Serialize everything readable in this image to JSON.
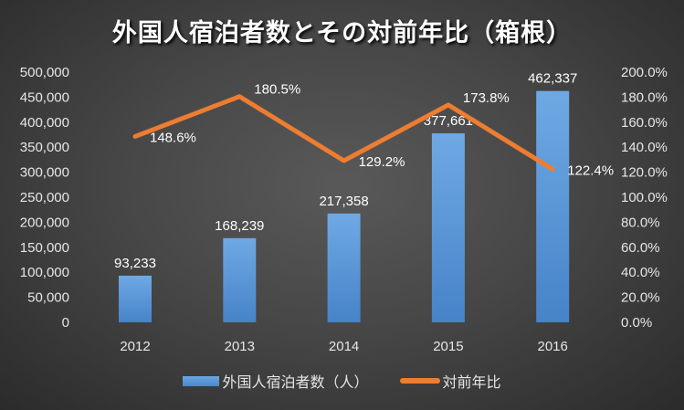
{
  "chart_data": {
    "type": "bar+line",
    "title": "外国人宿泊者数とその対前年比（箱根）",
    "categories": [
      "2012",
      "2013",
      "2014",
      "2015",
      "2016"
    ],
    "series": [
      {
        "name": "外国人宿泊者数（人）",
        "type": "bar",
        "axis": "left",
        "values": [
          93233,
          168239,
          217358,
          377661,
          462337
        ],
        "labels": [
          "93,233",
          "168,239",
          "217,358",
          "377,661",
          "462,337"
        ],
        "color": "#5b9bd5"
      },
      {
        "name": "対前年比",
        "type": "line",
        "axis": "right",
        "values": [
          148.6,
          180.5,
          129.2,
          173.8,
          122.4
        ],
        "labels": [
          "148.6%",
          "180.5%",
          "129.2%",
          "173.8%",
          "122.4%"
        ],
        "color": "#ed7d31"
      }
    ],
    "y_left": {
      "range": [
        0,
        500000
      ],
      "ticks": [
        "0",
        "50,000",
        "100,000",
        "150,000",
        "200,000",
        "250,000",
        "300,000",
        "350,000",
        "400,000",
        "450,000",
        "500,000"
      ]
    },
    "y_right": {
      "range": [
        0,
        200
      ],
      "ticks": [
        "0.0%",
        "20.0%",
        "40.0%",
        "60.0%",
        "80.0%",
        "100.0%",
        "120.0%",
        "140.0%",
        "160.0%",
        "180.0%",
        "200.0%"
      ]
    },
    "grid": false,
    "legend": "bottom"
  }
}
